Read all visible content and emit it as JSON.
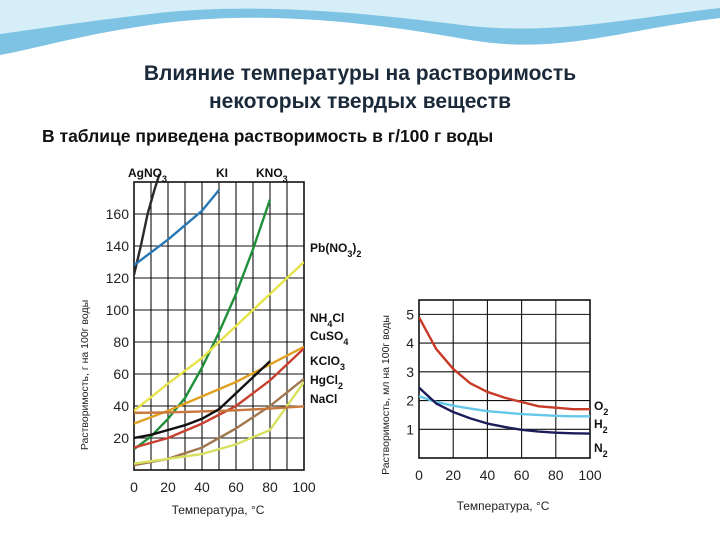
{
  "slide": {
    "title_line1": "Влияние температуры на растворимость",
    "title_line2": "некоторых твердых веществ",
    "subtitle": "В таблице приведена растворимость в г/100 г воды"
  },
  "colors": {
    "wave_light": "#d6eef8",
    "wave_dark": "#7fc3e4",
    "title": "#1b2a3a",
    "grid": "#111111"
  },
  "chart_data": [
    {
      "type": "line",
      "xlabel": "Температура, °С",
      "ylabel": "Растворимость, г на 100г воды",
      "xlim": [
        0,
        100
      ],
      "ylim": [
        0,
        180
      ],
      "xticks": [
        0,
        20,
        40,
        60,
        80,
        100
      ],
      "yticks": [
        20,
        40,
        60,
        80,
        100,
        120,
        140,
        160
      ],
      "grid": true,
      "series": [
        {
          "name": "AgNO3",
          "color": "#2a2a2a",
          "label_pos": "top",
          "x": [
            0,
            4,
            8,
            12,
            15
          ],
          "y": [
            122,
            140,
            160,
            175,
            185
          ]
        },
        {
          "name": "KI",
          "color": "#2a78b4",
          "label_pos": "top",
          "x": [
            0,
            10,
            20,
            30,
            40,
            50
          ],
          "y": [
            128,
            136,
            144,
            153,
            162,
            175
          ]
        },
        {
          "name": "KNO3",
          "color": "#1f8f3a",
          "label_pos": "top",
          "x": [
            0,
            10,
            20,
            30,
            40,
            50,
            60,
            70,
            80
          ],
          "y": [
            13,
            21,
            32,
            45,
            64,
            86,
            110,
            138,
            169
          ]
        },
        {
          "name": "Pb(NO3)2",
          "color": "#e8e24a",
          "label_pos": "right",
          "x": [
            0,
            20,
            40,
            60,
            80,
            100
          ],
          "y": [
            37,
            54,
            70,
            90,
            110,
            130
          ]
        },
        {
          "name": "NH4Cl",
          "color": "#e0a020",
          "label_pos": "right",
          "x": [
            0,
            20,
            40,
            60,
            80,
            100
          ],
          "y": [
            29,
            37,
            46,
            55,
            66,
            77
          ]
        },
        {
          "name": "CuSO4",
          "color": "#c84030",
          "label_pos": "right",
          "x": [
            0,
            20,
            40,
            60,
            80,
            100
          ],
          "y": [
            14,
            20,
            29,
            40,
            56,
            76
          ]
        },
        {
          "name": "KClO3",
          "color": "#a07850",
          "label_pos": "right",
          "x": [
            0,
            20,
            40,
            60,
            80,
            100
          ],
          "y": [
            3,
            7,
            14,
            26,
            40,
            57
          ]
        },
        {
          "name": "HgCl2",
          "color": "#d8e060",
          "label_pos": "right",
          "x": [
            0,
            20,
            40,
            60,
            80,
            100
          ],
          "y": [
            4,
            7,
            10,
            16,
            25,
            55
          ]
        },
        {
          "name": "NaCl",
          "color": "#c8783c",
          "label_pos": "right",
          "x": [
            0,
            20,
            40,
            60,
            80,
            100
          ],
          "y": [
            35.7,
            36,
            36.6,
            37.3,
            38.4,
            39.8
          ]
        },
        {
          "name": "",
          "color": "#111111",
          "label_pos": "none",
          "x": [
            0,
            10,
            20,
            30,
            40,
            50,
            60,
            70,
            80
          ],
          "y": [
            20,
            22,
            25,
            28,
            32,
            38,
            48,
            58,
            68
          ]
        }
      ]
    },
    {
      "type": "line",
      "xlabel": "Температура, °С",
      "ylabel": "Растворимость, мл на 100г воды",
      "xlim": [
        0,
        100
      ],
      "ylim": [
        0,
        5.5
      ],
      "xticks": [
        0,
        20,
        40,
        60,
        80,
        100
      ],
      "yticks": [
        1,
        2,
        3,
        4,
        5
      ],
      "grid": true,
      "series": [
        {
          "name": "O2",
          "color": "#c83a28",
          "x": [
            0,
            10,
            20,
            30,
            40,
            50,
            60,
            70,
            80,
            90,
            100
          ],
          "y": [
            4.9,
            3.8,
            3.1,
            2.6,
            2.3,
            2.1,
            1.95,
            1.8,
            1.75,
            1.7,
            1.7
          ]
        },
        {
          "name": "H2",
          "color": "#66c8e8",
          "x": [
            0,
            10,
            20,
            30,
            40,
            50,
            60,
            70,
            80,
            90,
            100
          ],
          "y": [
            2.15,
            1.95,
            1.82,
            1.72,
            1.63,
            1.58,
            1.53,
            1.5,
            1.47,
            1.45,
            1.45
          ]
        },
        {
          "name": "N2",
          "color": "#1c1c5a",
          "x": [
            0,
            10,
            20,
            30,
            40,
            50,
            60,
            70,
            80,
            90,
            100
          ],
          "y": [
            2.45,
            1.9,
            1.6,
            1.38,
            1.2,
            1.08,
            0.98,
            0.92,
            0.88,
            0.86,
            0.85
          ]
        }
      ]
    }
  ]
}
